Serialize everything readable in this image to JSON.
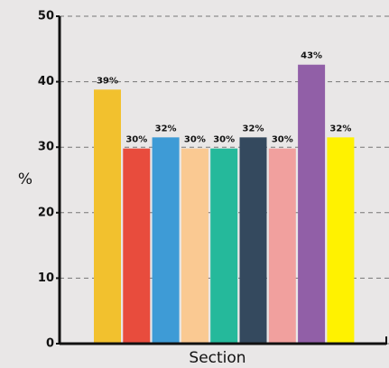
{
  "chart_data": {
    "type": "bar",
    "xlabel": "Section",
    "ylabel": "%",
    "categories": [
      null,
      null,
      null,
      null,
      null,
      null,
      null,
      null,
      null
    ],
    "values": [
      38.8,
      29.8,
      31.5,
      29.8,
      29.8,
      31.5,
      29.8,
      42.6,
      31.5
    ],
    "value_labels": [
      "39%",
      "30%",
      "32%",
      "30%",
      "30%",
      "32%",
      "30%",
      "43%",
      "32%"
    ],
    "colors": [
      "#f2c12e",
      "#e84c3d",
      "#3e9bd6",
      "#fac992",
      "#25b99b",
      "#34495e",
      "#f1a09e",
      "#915fa7",
      "#fff200"
    ],
    "ylim": [
      0,
      50
    ],
    "yticks": [
      0,
      10,
      20,
      30,
      40,
      50
    ],
    "grid": true
  }
}
